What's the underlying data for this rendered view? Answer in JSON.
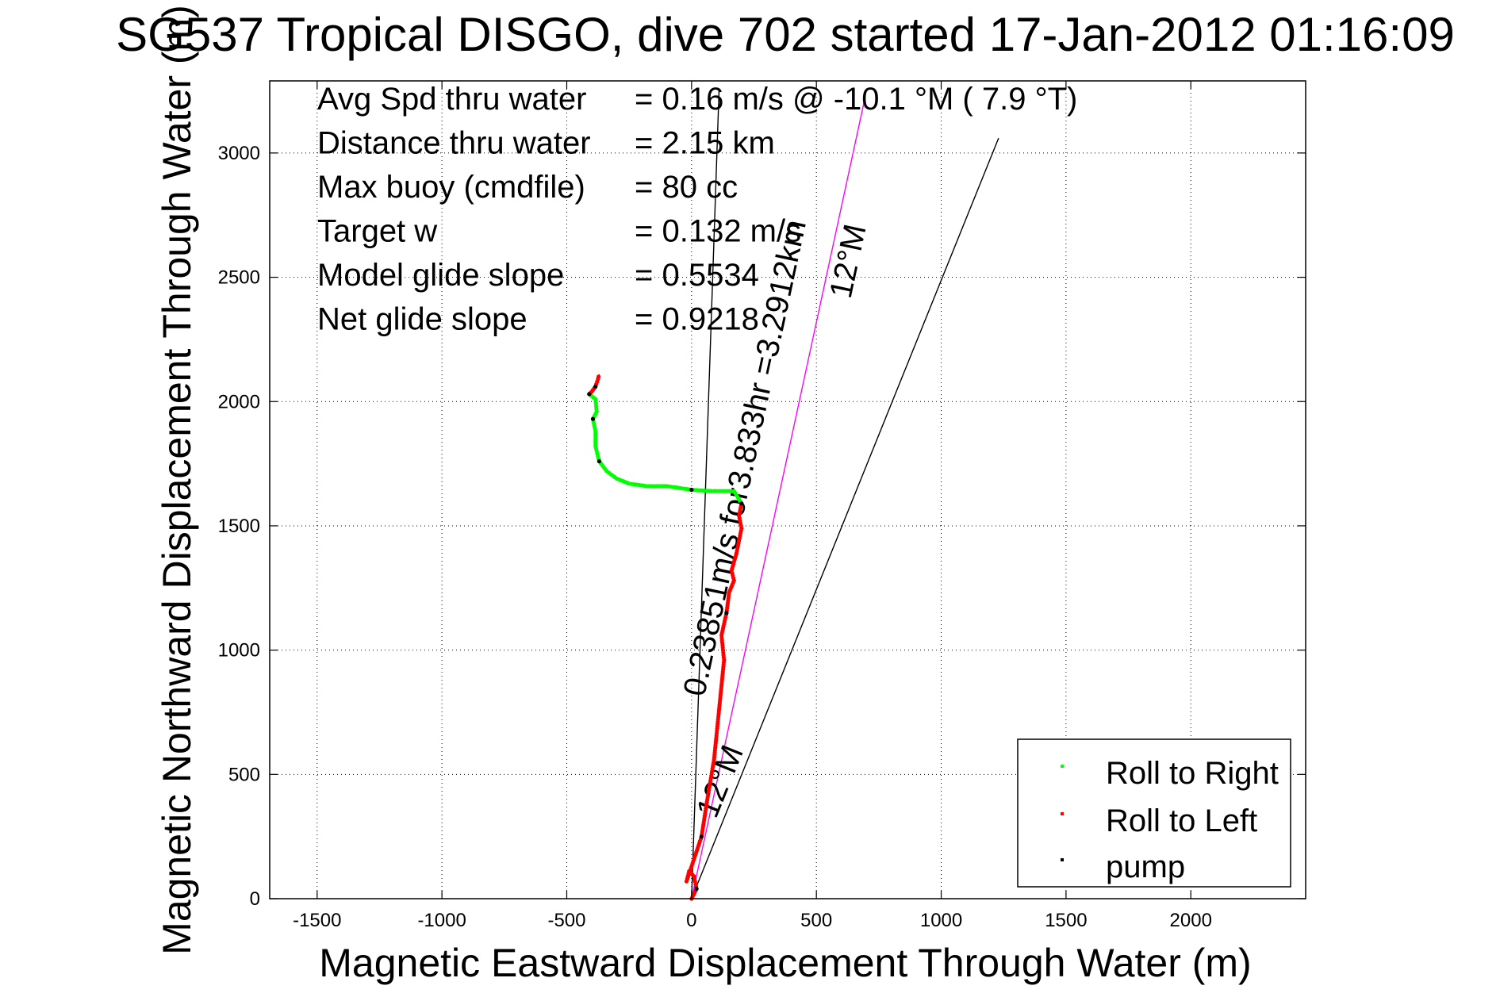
{
  "chart_data": {
    "type": "line",
    "title": "SG537 Tropical DISGO, dive 702 started 17-Jan-2012 01:16:09",
    "xlabel": "Magnetic Eastward Displacement Through Water (m)",
    "ylabel": "Magnetic Northward Displacement Through Water (m)",
    "xlim": [
      -1690,
      2460
    ],
    "ylim": [
      0,
      3290
    ],
    "xticks": [
      -1500,
      -1000,
      -500,
      0,
      500,
      1000,
      1500,
      2000
    ],
    "yticks": [
      0,
      500,
      1000,
      1500,
      2000,
      2500,
      3000
    ],
    "xtick_labels": [
      "-1500",
      "-1000",
      "-500",
      "0",
      "500",
      "1000",
      "1500",
      "2000"
    ],
    "ytick_labels": [
      "0",
      "500",
      "1000",
      "1500",
      "2000",
      "2500",
      "3000"
    ],
    "grid": true,
    "legend_position": "bottom-right",
    "stats": [
      {
        "label": "Avg Spd thru water",
        "value": "=  0.16 m/s @ -10.1 °M (  7.9 °T)"
      },
      {
        "label": "Distance thru water",
        "value": "=  2.15 km"
      },
      {
        "label": "Max buoy (cmdfile)",
        "value": "= 80 cc"
      },
      {
        "label": "Target w",
        "value": "= 0.132 m/s"
      },
      {
        "label": "Model glide slope",
        "value": "= 0.5534"
      },
      {
        "label": "Net glide slope",
        "value": "= 0.9218"
      }
    ],
    "reference_lines": [
      {
        "name": "course",
        "color": "#ff00ff",
        "x": [
          0,
          690
        ],
        "y": [
          0,
          3200
        ],
        "label": "0.23851m/s for3.833hr =3.2912km"
      },
      {
        "name": "plus12",
        "color": "#000000",
        "x": [
          0,
          1230
        ],
        "y": [
          0,
          3060
        ],
        "label": "12°M"
      },
      {
        "name": "minus12",
        "color": "#000000",
        "x": [
          0,
          110
        ],
        "y": [
          0,
          3250
        ],
        "label": "12°M"
      }
    ],
    "track": {
      "x": [
        0,
        20,
        10,
        -10,
        -20,
        10,
        40,
        60,
        90,
        110,
        130,
        120,
        140,
        150,
        170,
        160,
        180,
        190,
        200,
        190,
        200,
        170,
        130,
        80,
        0,
        -100,
        -180,
        -250,
        -300,
        -340,
        -370,
        -385,
        -385,
        -395,
        -380,
        -385,
        -410,
        -400,
        -385,
        -375,
        -370
      ],
      "y": [
        0,
        40,
        90,
        110,
        70,
        160,
        250,
        380,
        560,
        760,
        960,
        1060,
        1150,
        1230,
        1280,
        1320,
        1390,
        1440,
        1490,
        1540,
        1590,
        1640,
        1640,
        1640,
        1645,
        1660,
        1660,
        1670,
        1690,
        1720,
        1760,
        1820,
        1880,
        1930,
        1960,
        2010,
        2030,
        2040,
        2060,
        2090,
        2110
      ]
    },
    "series": [
      {
        "name": "Roll to Right",
        "color": "#00ff00"
      },
      {
        "name": "Roll to Left",
        "color": "#ff0000"
      },
      {
        "name": "pump",
        "color": "#000000"
      }
    ]
  }
}
